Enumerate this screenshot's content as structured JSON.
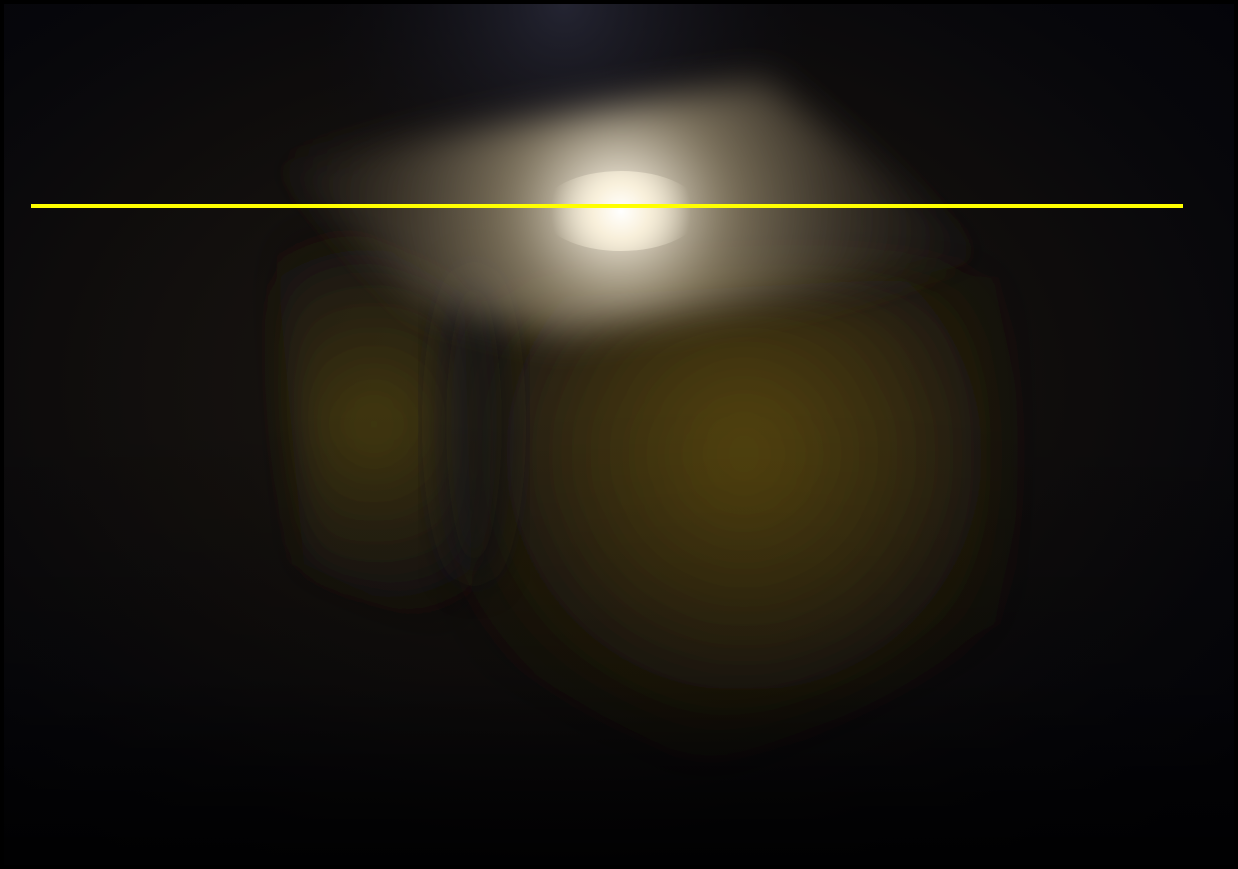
{
  "image": {
    "subject": "cube-light-scene",
    "colors": {
      "background": "#04040a",
      "glow_core": "#fffaf0",
      "glow_halo": "#d9ccb0",
      "cube_face": "#6b5a2a",
      "cube_shadow": "#3a2f14",
      "laser_line": "#ffff00"
    }
  }
}
